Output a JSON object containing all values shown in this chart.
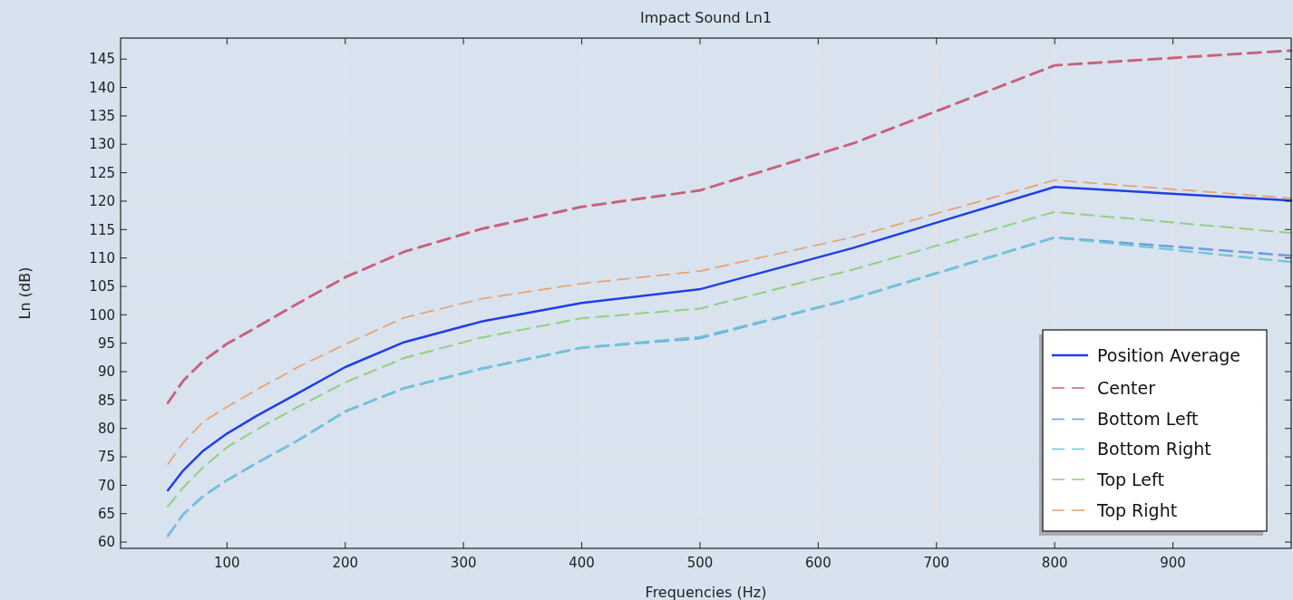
{
  "chart_data": {
    "type": "line",
    "title": "Impact Sound Ln1",
    "xlabel": "Frequencies (Hz)",
    "ylabel": "Ln (dB)",
    "x": [
      50,
      63,
      80,
      100,
      125,
      160,
      200,
      250,
      315,
      400,
      500,
      630,
      800,
      1000
    ],
    "xlim": [
      10,
      1000
    ],
    "xticks": [
      100,
      200,
      300,
      400,
      500,
      600,
      700,
      800,
      900
    ],
    "ylim": [
      58.9,
      148.7
    ],
    "yticks": [
      60,
      65,
      70,
      75,
      80,
      85,
      90,
      95,
      100,
      105,
      110,
      115,
      120,
      125,
      130,
      135,
      140,
      145
    ],
    "grid": true,
    "legend": "bottom right",
    "marker": "none",
    "series": [
      {
        "name": "Position Average",
        "color": "#1f3fe8",
        "line_style": "solid",
        "values": [
          69.1,
          72.6,
          76.1,
          79.1,
          82.2,
          86.2,
          90.8,
          95.2,
          98.8,
          102.1,
          104.5,
          111.8,
          122.5,
          120.1
        ]
      },
      {
        "name": "Center",
        "color": "#c8607a",
        "line_style": "dashed",
        "values": [
          84.5,
          88.4,
          91.9,
          94.9,
          97.8,
          102.0,
          106.6,
          111.1,
          115.1,
          119.0,
          121.9,
          130.2,
          143.9,
          146.5
        ]
      },
      {
        "name": "Bottom Left",
        "color": "#6f9ee0",
        "line_style": "dashed",
        "values": [
          61.1,
          64.9,
          68.1,
          70.9,
          73.9,
          77.9,
          83.0,
          87.1,
          90.5,
          94.2,
          95.9,
          102.9,
          113.6,
          110.4
        ]
      },
      {
        "name": "Bottom Right",
        "color": "#6fc6d8",
        "line_style": "dashed",
        "values": [
          61.1,
          64.9,
          68.1,
          70.9,
          73.9,
          77.9,
          83.0,
          87.1,
          90.5,
          94.2,
          96.1,
          102.9,
          113.6,
          109.3
        ]
      },
      {
        "name": "Top Left",
        "color": "#90d080",
        "line_style": "dashed",
        "values": [
          66.3,
          69.6,
          73.2,
          76.7,
          79.8,
          83.8,
          88.1,
          92.4,
          96.0,
          99.4,
          101.1,
          108.0,
          118.1,
          114.4
        ]
      },
      {
        "name": "Top Right",
        "color": "#e8a070",
        "line_style": "dashed",
        "values": [
          73.7,
          77.5,
          81.2,
          83.8,
          86.8,
          90.8,
          94.8,
          99.5,
          102.8,
          105.5,
          107.7,
          113.7,
          123.7,
          120.5
        ]
      }
    ]
  }
}
